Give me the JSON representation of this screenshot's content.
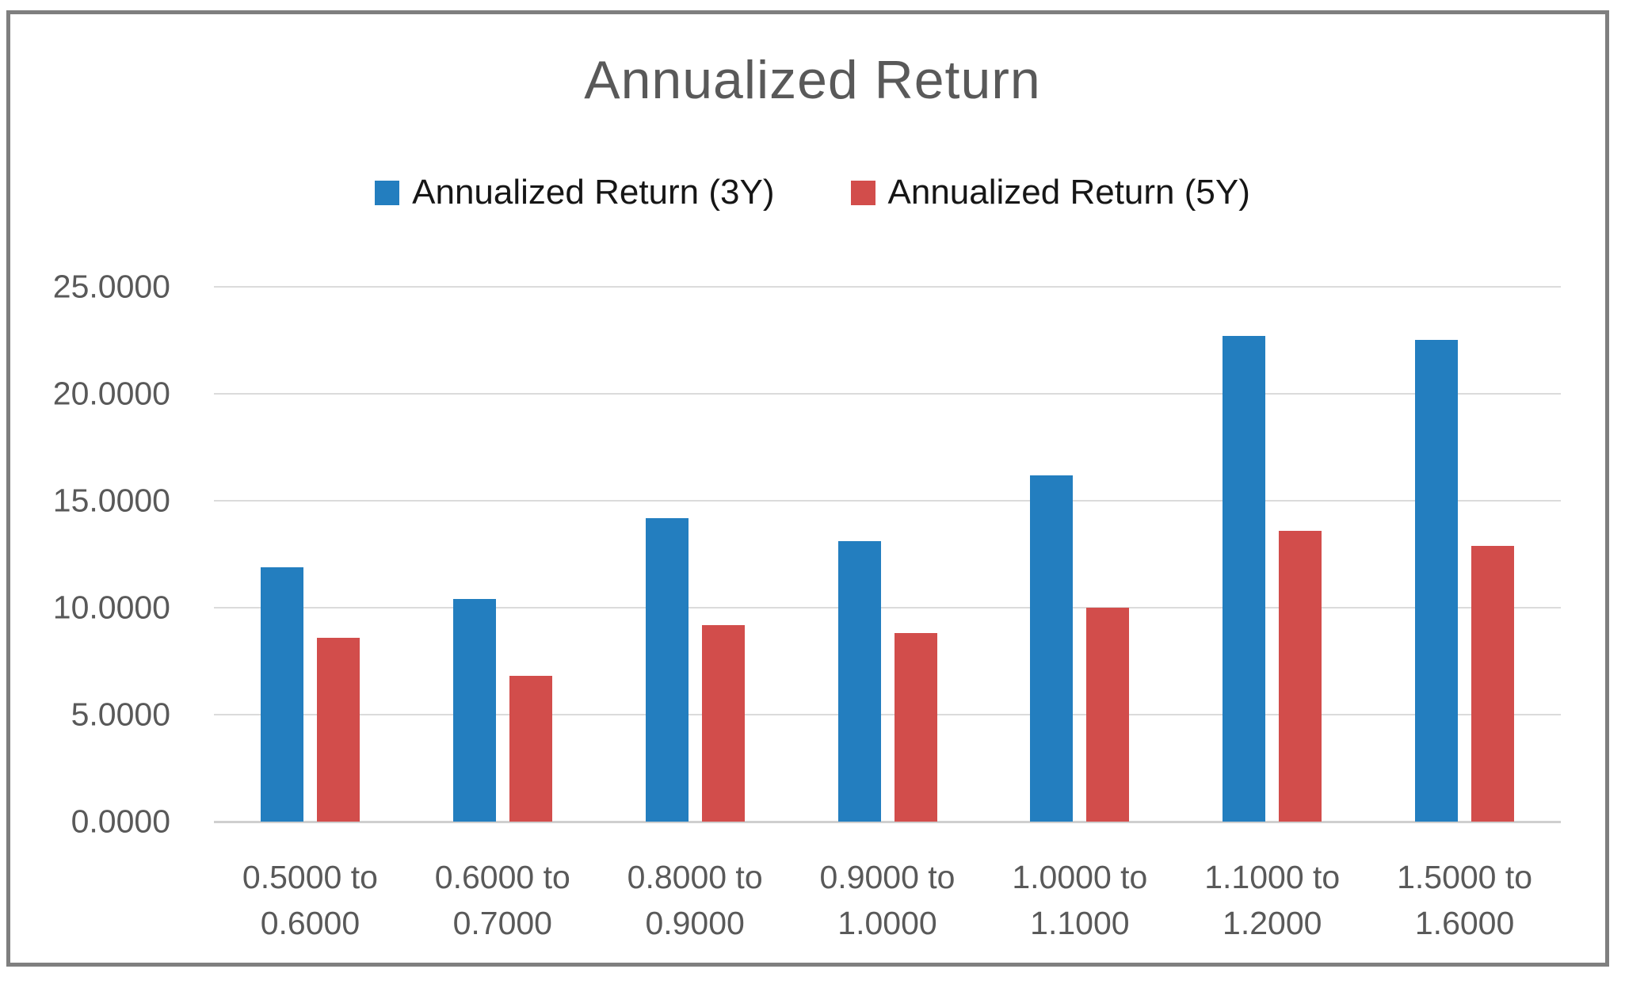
{
  "chart_data": {
    "type": "bar",
    "title": "Annualized Return",
    "categories": [
      "0.5000 to 0.6000",
      "0.6000 to 0.7000",
      "0.8000 to 0.9000",
      "0.9000 to 1.0000",
      "1.0000 to 1.1000",
      "1.1000 to 1.2000",
      "1.5000 to 1.6000"
    ],
    "series": [
      {
        "name": "Annualized Return (3Y)",
        "color": "#237ebf",
        "values": [
          11.9,
          10.4,
          14.2,
          13.1,
          16.2,
          22.7,
          22.5
        ]
      },
      {
        "name": "Annualized Return (5Y)",
        "color": "#d24d4b",
        "values": [
          8.6,
          6.8,
          9.2,
          8.8,
          10.0,
          13.6,
          12.9
        ]
      }
    ],
    "xlabel": "",
    "ylabel": "",
    "y_axis": {
      "min": 0,
      "max": 25,
      "step": 5,
      "tick_labels": [
        "25.0000",
        "20.0000",
        "15.0000",
        "10.0000",
        "5.0000",
        "0.0000"
      ]
    },
    "grid": true,
    "legend_position": "top-center",
    "colors": {
      "title_text": "#595959",
      "axis_text": "#595959",
      "legend_text": "#161616",
      "gridline": "#dbdbdb",
      "axis_line": "#cfcfcf",
      "frame_border": "#7f7f7f",
      "background": "#ffffff"
    }
  }
}
